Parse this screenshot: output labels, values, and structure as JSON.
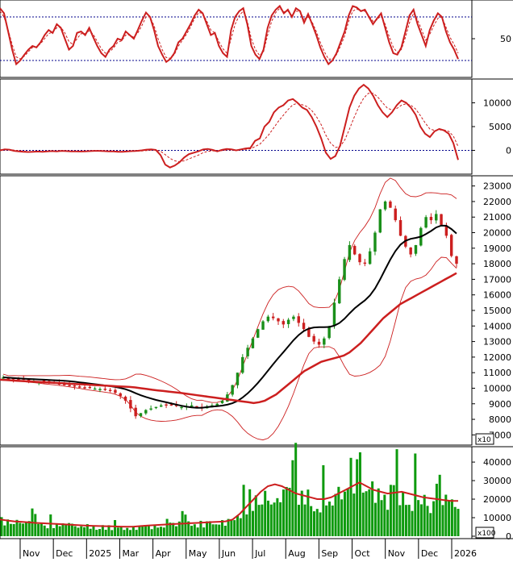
{
  "chart_data": [
    {
      "type": "line",
      "panel": "stochastic",
      "y_ticks": [
        "50"
      ],
      "ylim": [
        0,
        100
      ],
      "reference_lines": [
        80,
        20
      ],
      "grid": false,
      "colors": {
        "main": "#cc1f1f",
        "signal": "#cc1f1f",
        "reference": "#00008b"
      },
      "series": [
        {
          "values": [
            92,
            85,
            60,
            35,
            15,
            20,
            28,
            35,
            40,
            38,
            45,
            55,
            62,
            58,
            70,
            65,
            50,
            35,
            40,
            58,
            60,
            55,
            65,
            52,
            40,
            30,
            25,
            35,
            40,
            50,
            48,
            60,
            55,
            50,
            62,
            75,
            86,
            80,
            62,
            40,
            28,
            18,
            22,
            30,
            45,
            50,
            60,
            70,
            82,
            90,
            85,
            70,
            55,
            58,
            40,
            30,
            25,
            62,
            80,
            88,
            92,
            70,
            40,
            28,
            22,
            35,
            65,
            82,
            90,
            95,
            85,
            90,
            80,
            92,
            88,
            72,
            84,
            70,
            55,
            38,
            25,
            15,
            20,
            30,
            45,
            60,
            82,
            95,
            93,
            88,
            90,
            80,
            70,
            78,
            85,
            65,
            45,
            30,
            28,
            38,
            60,
            82,
            90,
            70,
            55,
            40,
            62,
            75,
            85,
            80,
            60,
            45,
            35,
            22
          ]
        },
        {
          "values": [
            88,
            80,
            62,
            42,
            25,
            22,
            26,
            32,
            38,
            39,
            43,
            50,
            57,
            59,
            65,
            66,
            58,
            46,
            42,
            50,
            57,
            57,
            61,
            56,
            46,
            36,
            30,
            32,
            37,
            45,
            47,
            55,
            55,
            52,
            58,
            68,
            80,
            80,
            68,
            50,
            35,
            24,
            23,
            28,
            40,
            48,
            56,
            66,
            78,
            86,
            85,
            74,
            62,
            58,
            46,
            36,
            30,
            50,
            70,
            82,
            88,
            74,
            50,
            35,
            27,
            32,
            55,
            74,
            86,
            92,
            87,
            88,
            82,
            88,
            87,
            77,
            80,
            73,
            60,
            45,
            32,
            22,
            22,
            28,
            40,
            54,
            74,
            88,
            91,
            88,
            88,
            82,
            74,
            76,
            82,
            70,
            53,
            38,
            31,
            35,
            52,
            72,
            85,
            76,
            62,
            48,
            56,
            68,
            78,
            80,
            66,
            52,
            42,
            30
          ]
        }
      ]
    },
    {
      "type": "line",
      "panel": "macd",
      "y_ticks": [
        "10000",
        "5000",
        "0"
      ],
      "ylim": [
        -4500,
        14500
      ],
      "reference_lines": [
        0
      ],
      "grid": false,
      "colors": {
        "main": "#cc1f1f",
        "signal": "#cc1f1f",
        "reference": "#00008b"
      },
      "series": [
        {
          "values": [
            0,
            200,
            150,
            -100,
            -200,
            -300,
            -350,
            -300,
            -250,
            -300,
            -200,
            -150,
            -200,
            -100,
            -150,
            -200,
            -200,
            -250,
            -200,
            -150,
            -100,
            -100,
            -150,
            -200,
            -200,
            -300,
            -300,
            -200,
            -150,
            -100,
            0,
            150,
            200,
            100,
            -1000,
            -3000,
            -3600,
            -3200,
            -2500,
            -1500,
            -800,
            -500,
            -200,
            200,
            300,
            100,
            -200,
            100,
            300,
            200,
            0,
            200,
            400,
            500,
            2000,
            2500,
            5000,
            6000,
            8000,
            9000,
            9500,
            10500,
            10800,
            10000,
            9000,
            8500,
            7000,
            5000,
            2500,
            -500,
            -1800,
            -1200,
            1000,
            5000,
            9000,
            11500,
            13000,
            13800,
            13000,
            11500,
            9500,
            8000,
            7000,
            8000,
            9500,
            10500,
            10000,
            9000,
            7500,
            5000,
            3500,
            2800,
            4000,
            4500,
            4200,
            3500,
            1500,
            -2000
          ]
        },
        {
          "values": [
            100,
            150,
            150,
            50,
            -80,
            -180,
            -260,
            -290,
            -280,
            -290,
            -260,
            -230,
            -220,
            -180,
            -170,
            -180,
            -185,
            -205,
            -205,
            -190,
            -160,
            -140,
            -142,
            -158,
            -170,
            -210,
            -240,
            -230,
            -210,
            -180,
            -120,
            -40,
            40,
            60,
            -200,
            -900,
            -1700,
            -2200,
            -2400,
            -2200,
            -1800,
            -1400,
            -1000,
            -500,
            -200,
            -100,
            -150,
            -50,
            80,
            120,
            80,
            120,
            220,
            320,
            800,
            1300,
            2300,
            3400,
            4800,
            6200,
            7400,
            8600,
            9600,
            9900,
            9600,
            9200,
            8400,
            7100,
            5400,
            3200,
            1500,
            600,
            800,
            2200,
            4500,
            7000,
            9200,
            11000,
            12000,
            12000,
            11200,
            10000,
            8900,
            8500,
            8800,
            9500,
            9800,
            9500,
            8700,
            7300,
            5800,
            4500,
            4200,
            4300,
            4300,
            4000,
            3000,
            800
          ]
        }
      ]
    },
    {
      "type": "line",
      "panel": "price",
      "y_ticks": [
        "23000",
        "22000",
        "21000",
        "20000",
        "19000",
        "18000",
        "17000",
        "16000",
        "15000",
        "14000",
        "13000",
        "12000",
        "11000",
        "10000",
        "9000",
        "8000",
        "7000"
      ],
      "y_unit_badge": "x10",
      "ylim": [
        6500,
        23500
      ],
      "candle_colors": {
        "up": "#1a8f1a",
        "down": "#cc1f1f"
      },
      "line_colors": {
        "ma_slow": "#cc1f1f",
        "ma_mid": "#000000",
        "bollinger": "#cc1f1f"
      },
      "closes": [
        10700,
        10650,
        10600,
        10580,
        10550,
        10500,
        10480,
        10450,
        10400,
        10380,
        10350,
        10300,
        10250,
        10200,
        10150,
        10100,
        10050,
        10000,
        9980,
        9950,
        9900,
        9850,
        9700,
        9500,
        9200,
        8700,
        8200,
        8400,
        8600,
        8700,
        8800,
        8900,
        8950,
        8900,
        8850,
        8800,
        8850,
        8900,
        8800,
        8750,
        8800,
        8900,
        9000,
        9200,
        9600,
        10200,
        11000,
        12000,
        12600,
        13200,
        13800,
        14300,
        14600,
        14500,
        14300,
        14100,
        14400,
        14600,
        14200,
        13800,
        13300,
        13000,
        12800,
        13200,
        14000,
        15500,
        17000,
        18300,
        19200,
        18600,
        18100,
        18000,
        18800,
        20000,
        21500,
        22000,
        21600,
        20800,
        19800,
        19100,
        18600,
        19200,
        20300,
        21000,
        20800,
        21200,
        20500,
        19800,
        18500,
        18000
      ],
      "ma_slow": [
        10550,
        10530,
        10500,
        10480,
        10460,
        10440,
        10420,
        10400,
        10380,
        10360,
        10340,
        10320,
        10300,
        10280,
        10260,
        10240,
        10220,
        10200,
        10180,
        10160,
        10140,
        10120,
        10100,
        10080,
        10050,
        10000,
        9950,
        9900,
        9860,
        9820,
        9780,
        9740,
        9700,
        9650,
        9600,
        9550,
        9500,
        9450,
        9400,
        9350,
        9300,
        9250,
        9200,
        9150,
        9100,
        9050,
        9100,
        9200,
        9400,
        9600,
        9900,
        10200,
        10500,
        10800,
        11100,
        11300,
        11500,
        11700,
        11800,
        11900,
        12000,
        12100,
        12300,
        12600,
        12900,
        13300,
        13700,
        14100,
        14500,
        14800,
        15100,
        15400,
        15600,
        15800,
        16000,
        16200,
        16400,
        16600,
        16800,
        17000,
        17200,
        17400
      ]
    },
    {
      "type": "bar",
      "panel": "volume",
      "y_ticks": [
        "40000",
        "30000",
        "20000",
        "10000",
        "0"
      ],
      "y_unit_badge": "x100",
      "ylim": [
        0,
        47000
      ],
      "x_tick_labels": [
        "Nov",
        "Dec",
        "2025",
        "Mar",
        "Apr",
        "May",
        "Jun",
        "Jul",
        "Aug",
        "Sep",
        "Oct",
        "Nov",
        "Dec",
        "2026"
      ],
      "colors": {
        "bars": "#0e9a0e",
        "ma": "#cc1f1f"
      },
      "ma_values": [
        9000,
        8500,
        8000,
        7800,
        7500,
        7200,
        7000,
        6800,
        6600,
        6400,
        6200,
        6000,
        5800,
        5600,
        5500,
        5400,
        5300,
        5200,
        5100,
        5200,
        5500,
        5800,
        6000,
        6200,
        6400,
        6600,
        6800,
        7000,
        7200,
        7400,
        7600,
        7800,
        8000,
        9000,
        12000,
        16000,
        20000,
        24000,
        27000,
        28000,
        27000,
        25000,
        23000,
        22000,
        21000,
        20000,
        20000,
        21000,
        23000,
        25000,
        27000,
        29000,
        27000,
        25000,
        24000,
        23000,
        23500,
        24000,
        23000,
        22000,
        21000,
        20500,
        20000,
        19500,
        19000,
        19000
      ]
    }
  ]
}
